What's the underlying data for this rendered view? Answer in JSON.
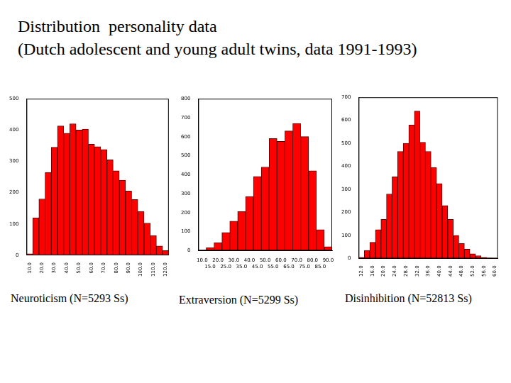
{
  "title": "Distribution  personality data",
  "subtitle": "(Dutch adolescent and young adult twins, data 1991-1993)",
  "chart_data": [
    {
      "type": "bar",
      "xlabel": "Neuroticism (N=5293 Ss)",
      "categories": [
        "10.0",
        null,
        "20.0",
        null,
        "30.0",
        null,
        "40.0",
        null,
        "50.0",
        null,
        "60.0",
        null,
        "70.0",
        null,
        "80.0",
        null,
        "90.0",
        null,
        "100.0",
        null,
        "110.0",
        null,
        "120.0"
      ],
      "values": [
        5,
        120,
        180,
        265,
        345,
        413,
        390,
        420,
        400,
        403,
        355,
        347,
        338,
        305,
        270,
        240,
        205,
        178,
        140,
        103,
        63,
        30,
        15
      ],
      "color": "#ff0000",
      "ylim": [
        0,
        500
      ],
      "yticks": [
        0,
        100,
        200,
        300,
        400,
        500
      ],
      "grid": false
    },
    {
      "type": "bar",
      "xlabel": "Extraversion (N=5299 Ss)",
      "categories": [
        "10.0",
        "15.0",
        "20.0",
        "25.0",
        "30.0",
        "35.0",
        "40.0",
        "45.0",
        "50.0",
        "55.0",
        "60.0",
        "65.0",
        "70.0",
        "75.0",
        "80.0",
        "85.0",
        "90.0"
      ],
      "values": [
        2,
        15,
        42,
        95,
        155,
        205,
        285,
        390,
        440,
        590,
        575,
        630,
        670,
        600,
        420,
        110,
        20
      ],
      "color": "#ff0000",
      "ylim": [
        0,
        800
      ],
      "yticks": [
        0,
        100,
        200,
        300,
        400,
        500,
        600,
        700,
        800
      ],
      "grid": false
    },
    {
      "type": "bar",
      "xlabel": "Disinhibition (N=52813 Ss)",
      "categories": [
        "12.0",
        null,
        "16.0",
        null,
        "20.0",
        null,
        "24.0",
        null,
        "28.0",
        null,
        "32.0",
        null,
        "36.0",
        null,
        "40.0",
        null,
        "44.0",
        null,
        "48.0",
        null,
        "52.0",
        null,
        "56.0",
        null,
        "60.0"
      ],
      "values": [
        5,
        35,
        70,
        125,
        170,
        280,
        355,
        465,
        500,
        580,
        640,
        505,
        465,
        395,
        325,
        230,
        170,
        100,
        65,
        40,
        20,
        12,
        5,
        2,
        1
      ],
      "color": "#ff0000",
      "ylim": [
        0,
        700
      ],
      "yticks": [
        0,
        100,
        200,
        300,
        400,
        500,
        600,
        700
      ],
      "grid": false
    }
  ]
}
